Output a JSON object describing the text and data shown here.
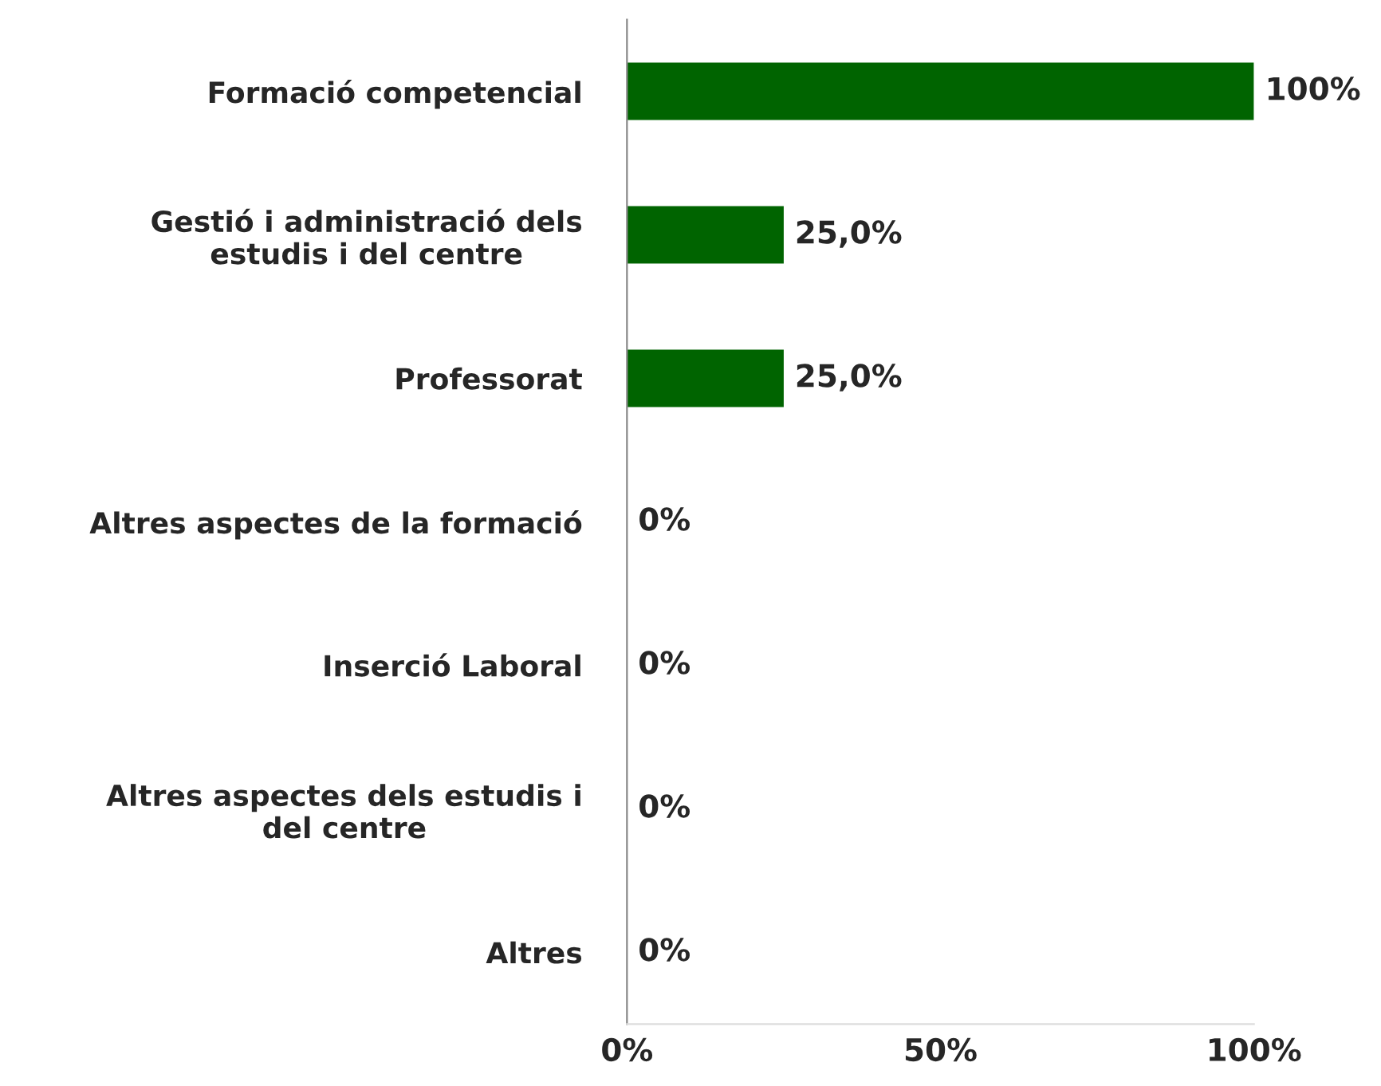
{
  "chart_data": {
    "type": "bar",
    "orientation": "horizontal",
    "categories": [
      "Formació competencial",
      "Gestió i administració dels\nestudis i del centre",
      "Professorat",
      "Altres aspectes de la formació",
      "Inserció Laboral",
      "Altres aspectes dels estudis i\ndel centre",
      "Altres"
    ],
    "values": [
      100,
      25,
      25,
      0,
      0,
      0,
      0
    ],
    "value_labels": [
      "100%",
      "25,0%",
      "25,0%",
      "0%",
      "0%",
      "0%",
      "0%"
    ],
    "color": "#006400",
    "xlim": [
      0,
      100
    ],
    "xticks": [
      {
        "value": 0,
        "label": "0%"
      },
      {
        "value": 50,
        "label": "50%"
      },
      {
        "value": 100,
        "label": "100%"
      }
    ],
    "grid": false,
    "legend": false
  }
}
